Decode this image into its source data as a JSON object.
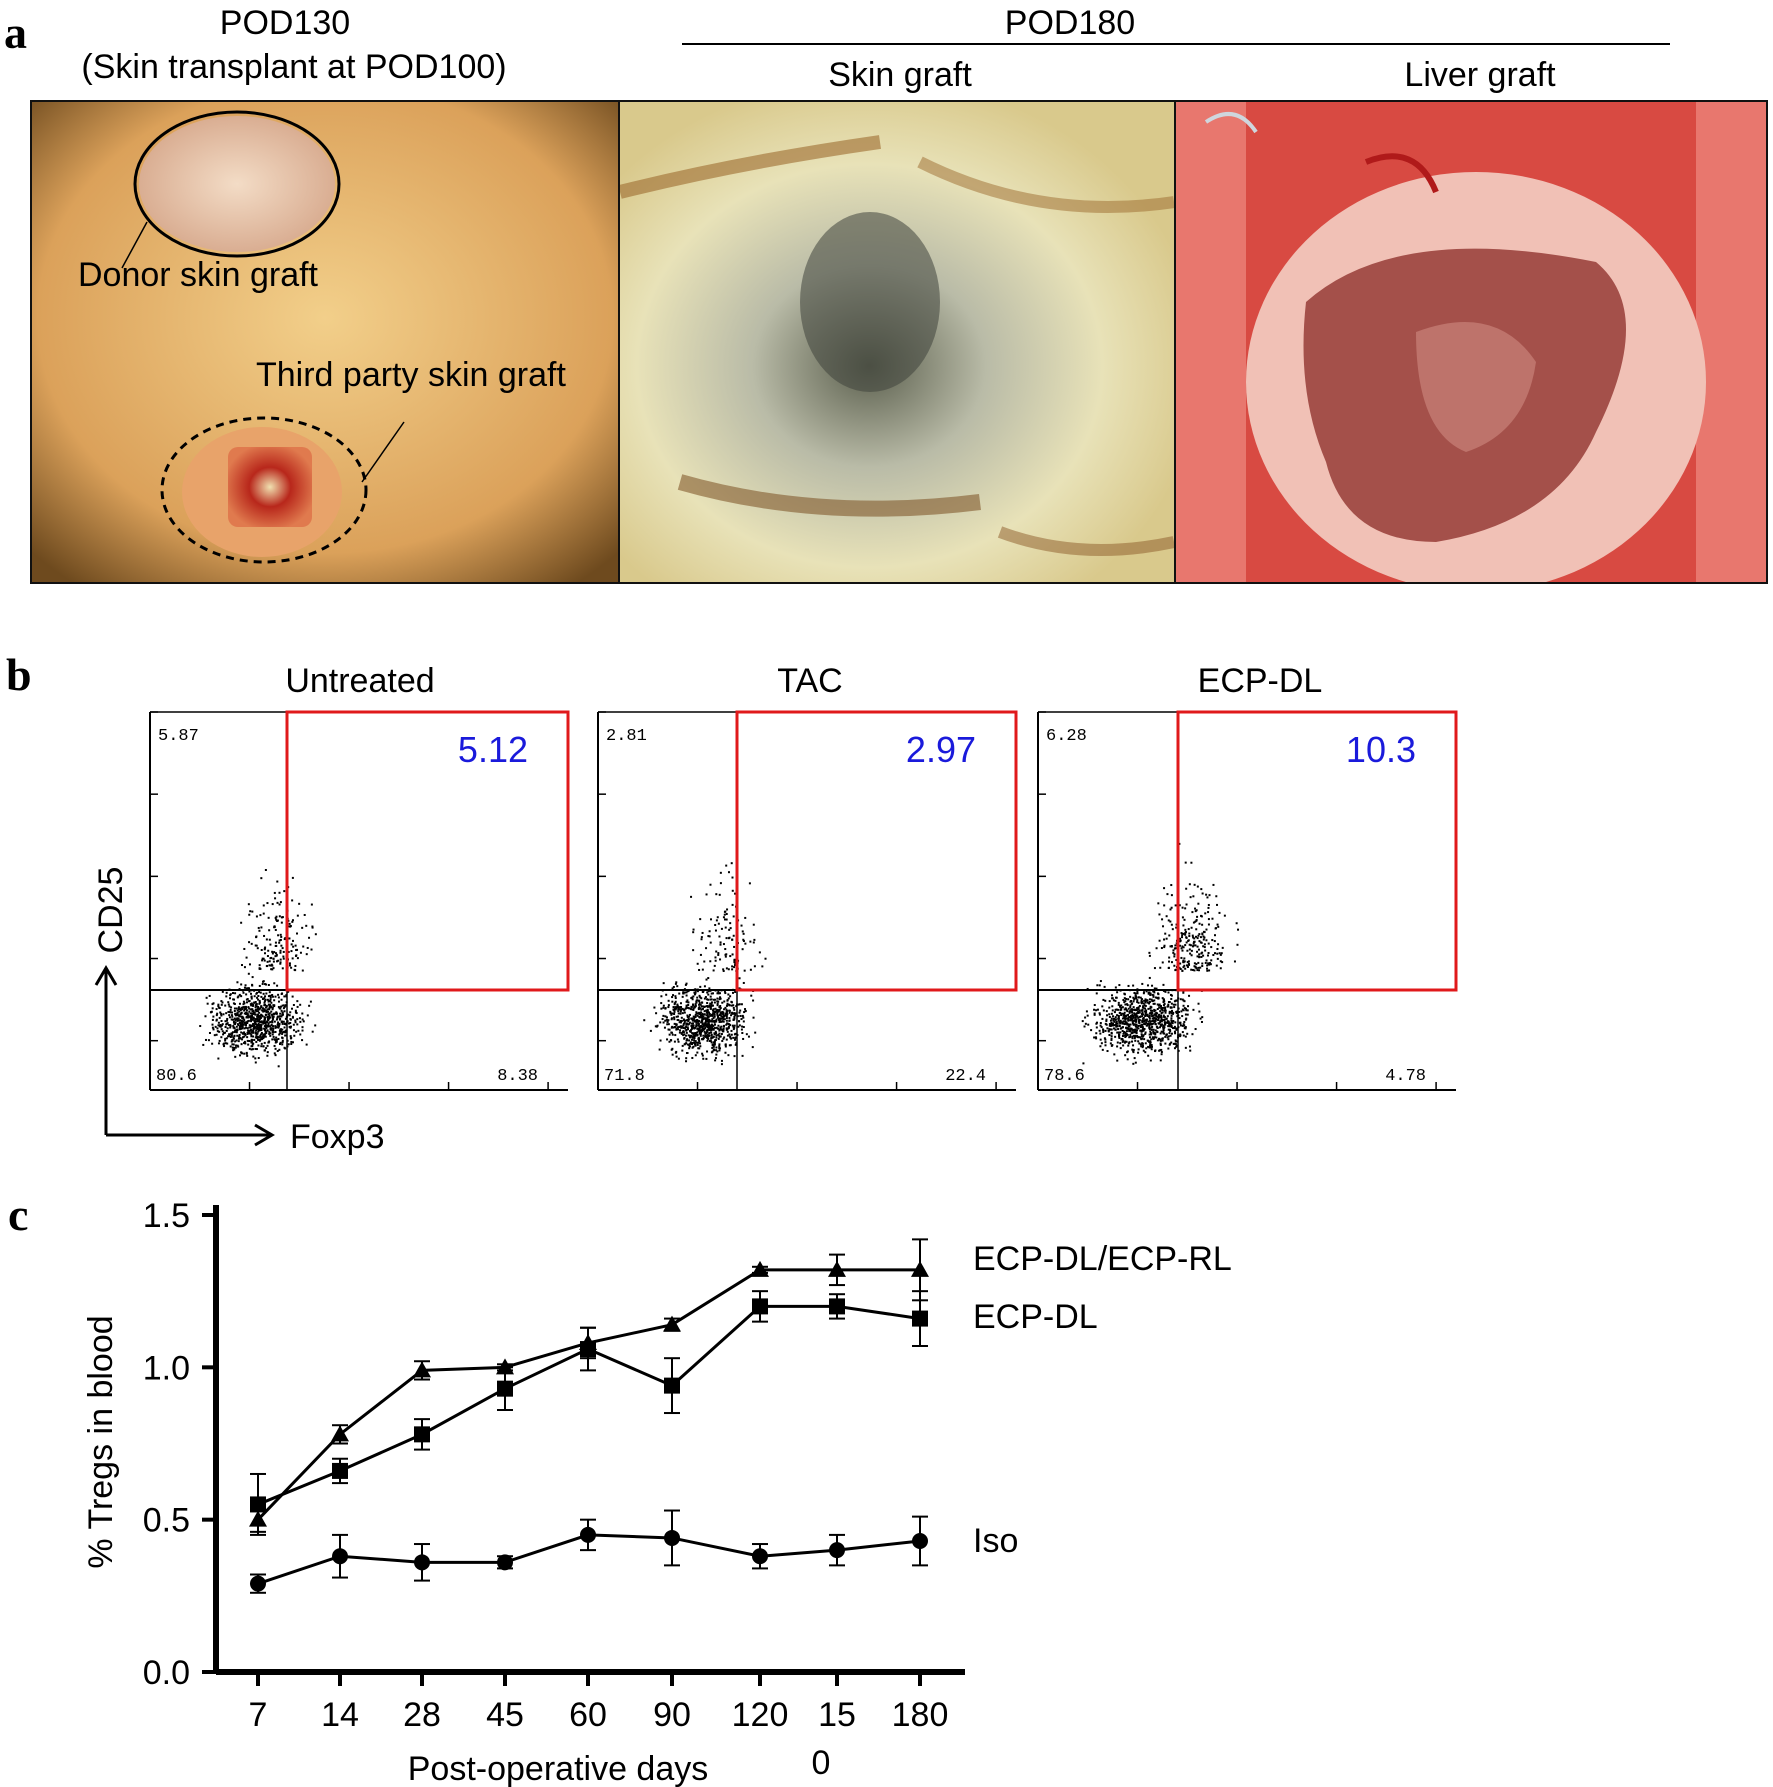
{
  "panel_a": {
    "letter": "a",
    "header_left_line1": "POD130",
    "header_left_line2": "(Skin transplant at POD100)",
    "header_right": "POD180",
    "sub_skin": "Skin graft",
    "sub_liver": "Liver graft",
    "label_donor": "Donor skin graft",
    "label_third": "Third party skin graft"
  },
  "panel_b": {
    "letter": "b",
    "y_axis_label": "CD25",
    "x_axis_label": "Foxp3",
    "plots": [
      {
        "title": "Untreated",
        "ul": "5.87",
        "ur": "5.12",
        "ll": "80.6",
        "lr": "8.38"
      },
      {
        "title": "TAC",
        "ul": "2.81",
        "ur": "2.97",
        "ll": "71.8",
        "lr": "22.4"
      },
      {
        "title": "ECP-DL",
        "ul": "6.28",
        "ur": "10.3",
        "ll": "78.6",
        "lr": "4.78"
      }
    ],
    "gate_color": "#e0191b",
    "gate_value_color": "#1a1adb"
  },
  "panel_c": {
    "letter": "c",
    "chart_data": {
      "type": "line",
      "title": "",
      "xlabel": "Post-operative days",
      "ylabel": "% Tregs in blood",
      "categories": [
        "7",
        "14",
        "28",
        "45",
        "60",
        "90",
        "120",
        "15",
        "180"
      ],
      "x_tick_extra": "0",
      "ylim": [
        0,
        1.5
      ],
      "yticks": [
        "0.0",
        "0.5",
        "1.0",
        "1.5"
      ],
      "series": [
        {
          "name": "ECP-DL/ECP-RL",
          "marker": "triangle",
          "values": [
            0.5,
            0.78,
            0.99,
            1.0,
            1.08,
            1.14,
            1.32,
            1.32,
            1.32
          ],
          "errors": [
            0.04,
            0.03,
            0.03,
            0.01,
            0.05,
            0.02,
            0.01,
            0.05,
            0.1
          ]
        },
        {
          "name": "ECP-DL",
          "marker": "square",
          "values": [
            0.55,
            0.66,
            0.78,
            0.93,
            1.06,
            0.94,
            1.2,
            1.2,
            1.16
          ],
          "errors": [
            0.1,
            0.04,
            0.05,
            0.07,
            0.07,
            0.09,
            0.05,
            0.04,
            0.09
          ]
        },
        {
          "name": "Iso",
          "marker": "circle",
          "values": [
            0.29,
            0.38,
            0.36,
            0.36,
            0.45,
            0.44,
            0.38,
            0.4,
            0.43
          ],
          "errors": [
            0.03,
            0.07,
            0.06,
            0.02,
            0.05,
            0.09,
            0.04,
            0.05,
            0.08
          ]
        }
      ]
    }
  }
}
